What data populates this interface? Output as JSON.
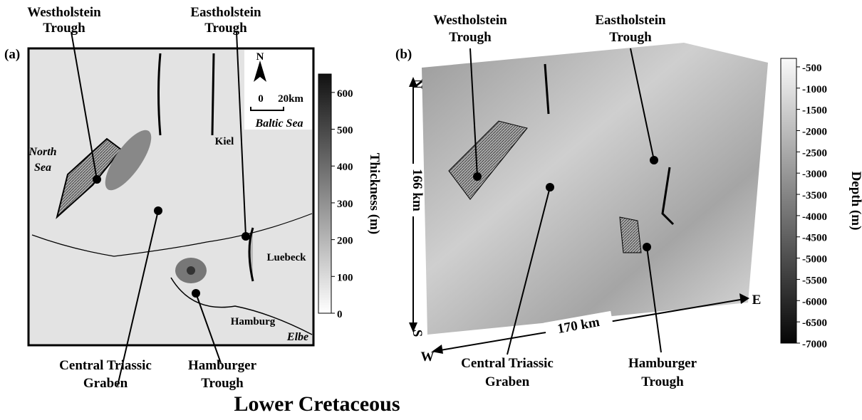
{
  "caption": "Lower Cretaceous",
  "panel_a": {
    "tag": "(a)",
    "labels": {
      "westholstein": [
        "Westholstein",
        "Trough"
      ],
      "eastholstein": [
        "Eastholstein",
        "Trough"
      ],
      "central": [
        "Central Triassic",
        "Graben"
      ],
      "hamburger": [
        "Hamburger",
        "Trough"
      ],
      "north_sea": [
        "North",
        "Sea"
      ],
      "baltic_sea": "Baltic Sea",
      "kiel": "Kiel",
      "luebeck": "Luebeck",
      "hamburg": "Hamburg",
      "elbe": "Elbe",
      "north": "N",
      "scale_zero": "0",
      "scale_len": "20km"
    },
    "colorbar": {
      "label": "Thickness (m)",
      "range": [
        0,
        650
      ],
      "ticks": [
        600,
        500,
        400,
        300,
        200,
        100,
        0
      ]
    }
  },
  "panel_b": {
    "tag": "(b)",
    "labels": {
      "westholstein": [
        "Westholstein",
        "Trough"
      ],
      "eastholstein": [
        "Eastholstein",
        "Trough"
      ],
      "central": [
        "Central Triassic",
        "Graben"
      ],
      "hamburger": [
        "Hamburger",
        "Trough"
      ],
      "north": "N",
      "south": "S",
      "west": "W",
      "east": "E",
      "ns_len": "166 km",
      "we_len": "170 km"
    },
    "colorbar": {
      "label": "Depth (m)",
      "range": [
        -7000,
        -300
      ],
      "ticks": [
        -500,
        -1000,
        -1500,
        -2000,
        -2500,
        -3000,
        -3500,
        -4000,
        -4500,
        -5000,
        -5500,
        -6000,
        -6500,
        -7000
      ]
    }
  }
}
